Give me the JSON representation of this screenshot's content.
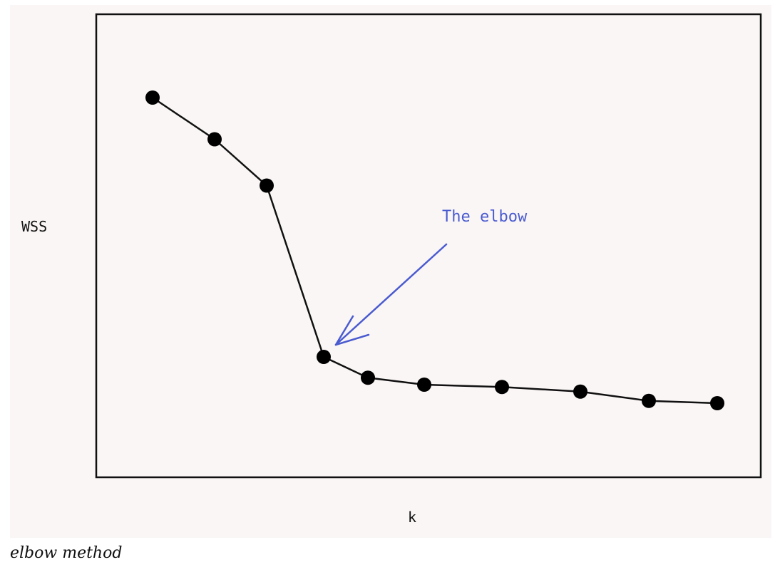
{
  "caption": "elbow method",
  "colors": {
    "background": "#faf6f5",
    "line": "#111111",
    "point": "#000000",
    "annotation": "#4a5bd0"
  },
  "chart_data": {
    "type": "line",
    "title": "",
    "xlabel": "k",
    "ylabel": "WSS",
    "grid": false,
    "x": [
      1,
      2,
      3,
      4,
      5,
      6,
      7,
      8,
      9,
      10
    ],
    "series": [
      {
        "values": [
          8.2,
          7.3,
          6.3,
          2.6,
          2.15,
          2.0,
          1.95,
          1.85,
          1.65,
          1.6
        ]
      }
    ],
    "annotations": [
      {
        "text": "The elbow",
        "points_to_x": 4
      }
    ]
  }
}
